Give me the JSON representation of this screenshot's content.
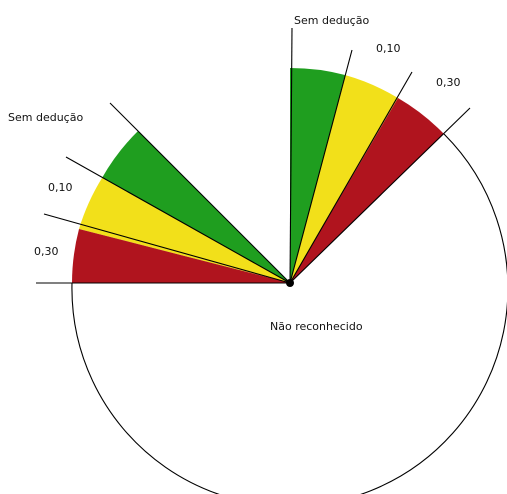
{
  "colors": {
    "green": "#1f9e1f",
    "yellow": "#f2e01a",
    "red": "#b0141e",
    "outline": "#000000",
    "background": "#ffffff"
  },
  "labels": {
    "right_no_deduction": "Sem dedução",
    "right_010": "0,10",
    "right_030": "0,30",
    "left_no_deduction": "Sem dedução",
    "left_010": "0,10",
    "left_030": "0,30",
    "not_recognized": "Não reconhecido"
  }
}
